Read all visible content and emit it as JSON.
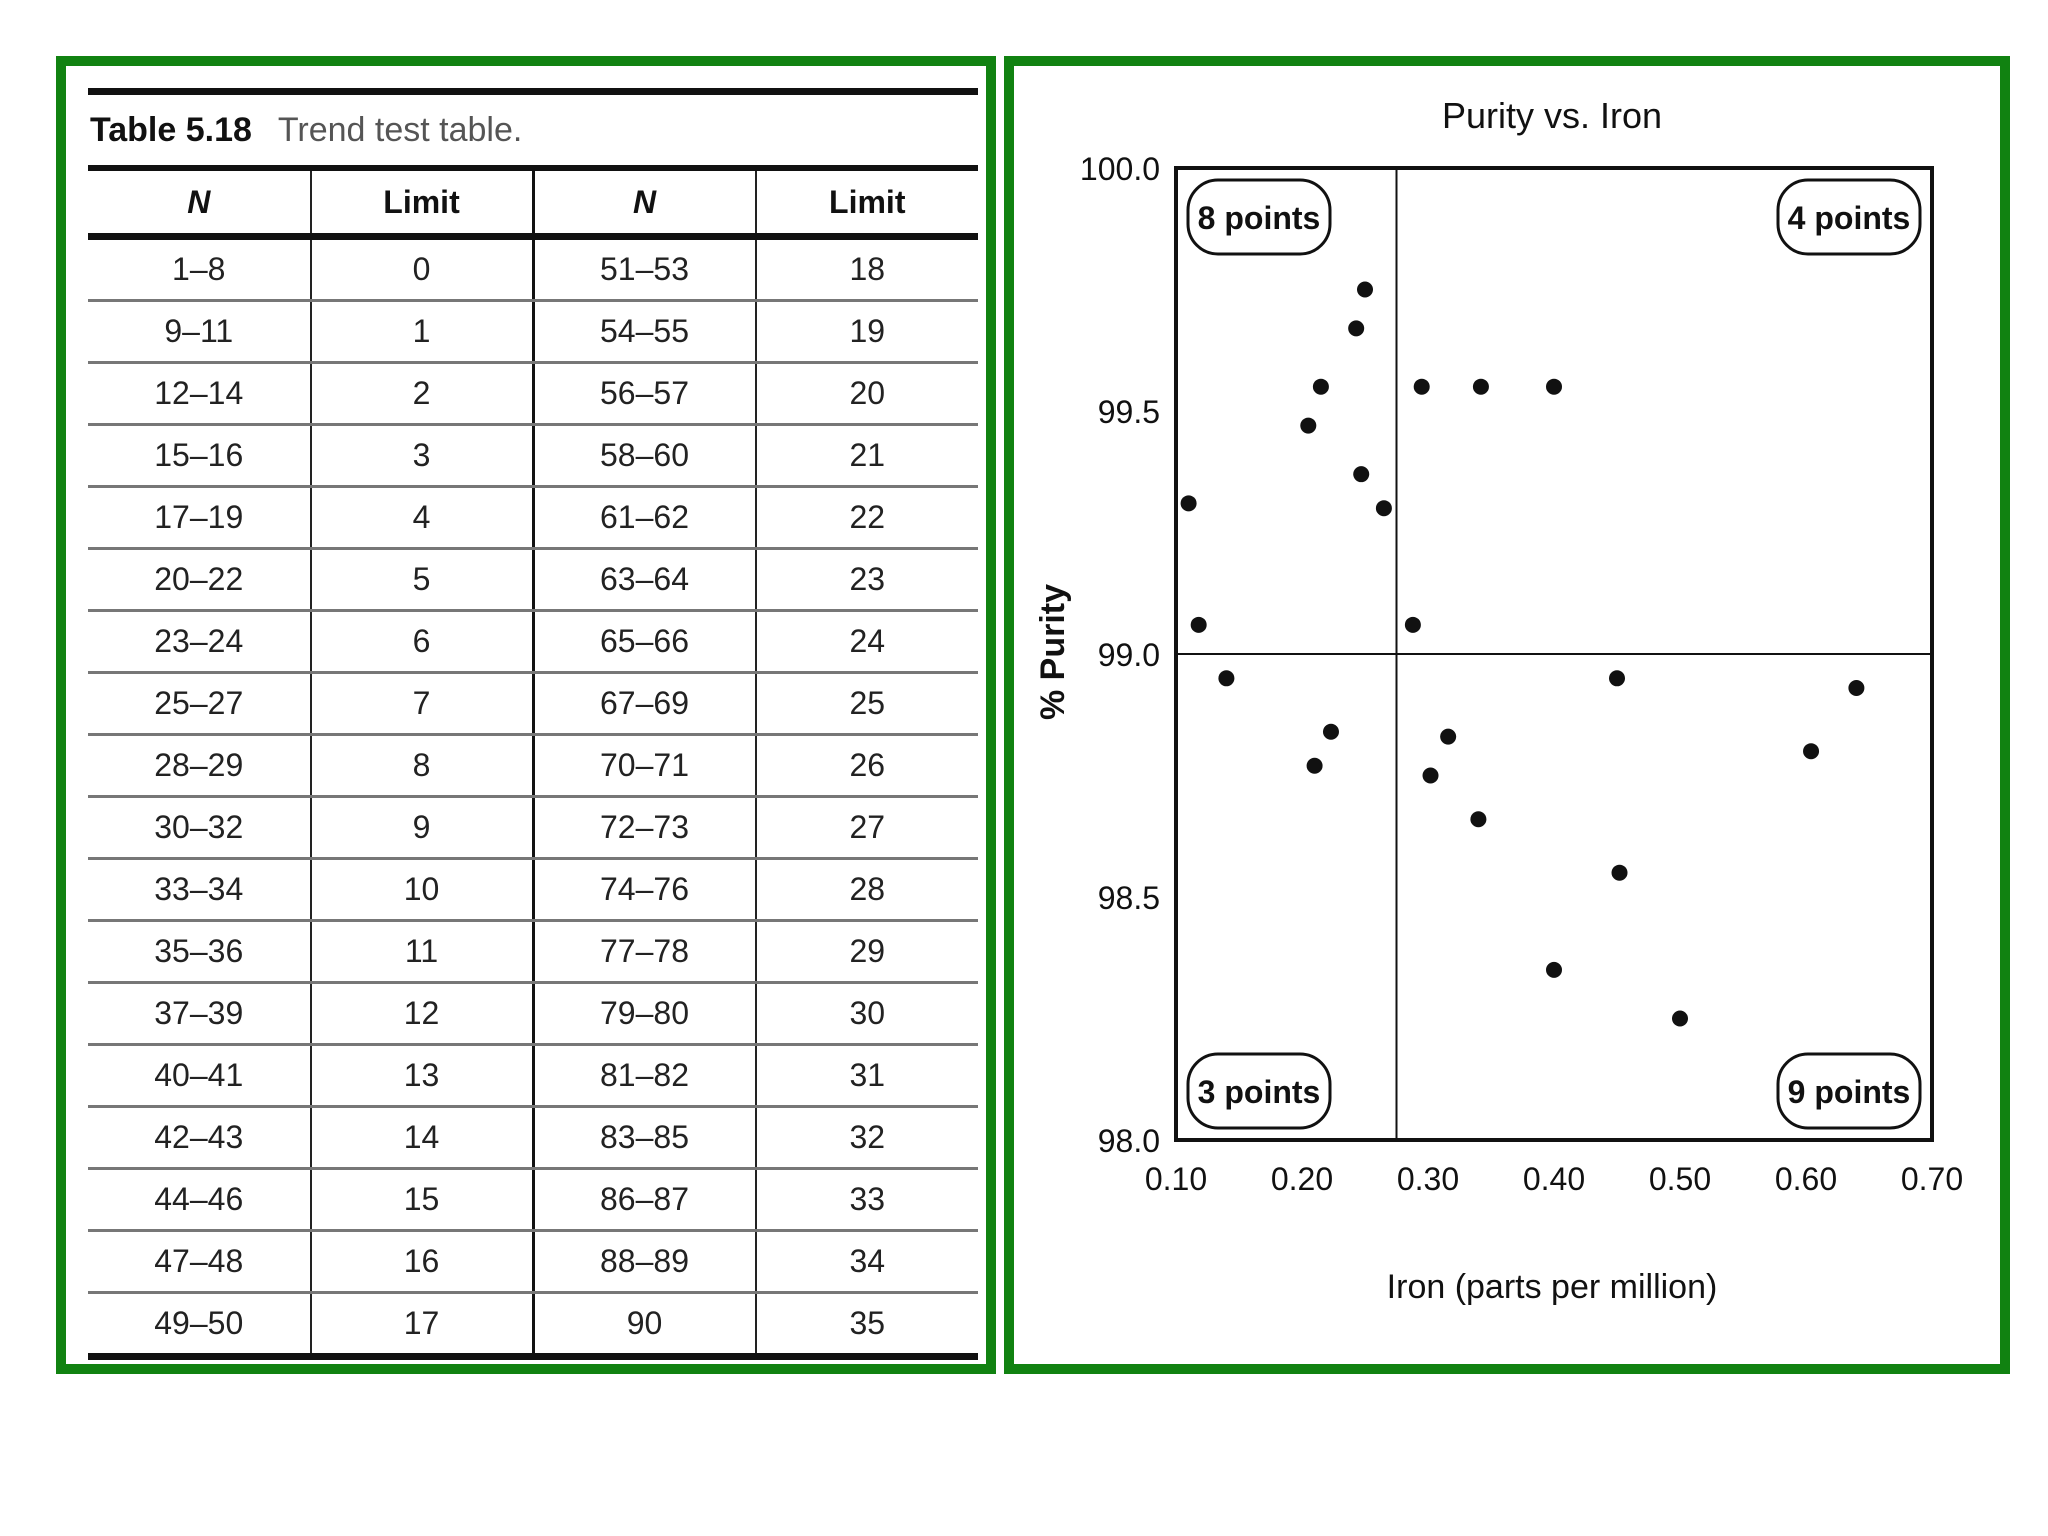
{
  "table": {
    "label": "Table 5.18",
    "caption": "Trend test table.",
    "headers": [
      "N",
      "Limit",
      "N",
      "Limit"
    ],
    "rows": [
      [
        "1–8",
        "0",
        "51–53",
        "18"
      ],
      [
        "9–11",
        "1",
        "54–55",
        "19"
      ],
      [
        "12–14",
        "2",
        "56–57",
        "20"
      ],
      [
        "15–16",
        "3",
        "58–60",
        "21"
      ],
      [
        "17–19",
        "4",
        "61–62",
        "22"
      ],
      [
        "20–22",
        "5",
        "63–64",
        "23"
      ],
      [
        "23–24",
        "6",
        "65–66",
        "24"
      ],
      [
        "25–27",
        "7",
        "67–69",
        "25"
      ],
      [
        "28–29",
        "8",
        "70–71",
        "26"
      ],
      [
        "30–32",
        "9",
        "72–73",
        "27"
      ],
      [
        "33–34",
        "10",
        "74–76",
        "28"
      ],
      [
        "35–36",
        "11",
        "77–78",
        "29"
      ],
      [
        "37–39",
        "12",
        "79–80",
        "30"
      ],
      [
        "40–41",
        "13",
        "81–82",
        "31"
      ],
      [
        "42–43",
        "14",
        "83–85",
        "32"
      ],
      [
        "44–46",
        "15",
        "86–87",
        "33"
      ],
      [
        "47–48",
        "16",
        "88–89",
        "34"
      ],
      [
        "49–50",
        "17",
        "90",
        "35"
      ]
    ]
  },
  "chart_data": {
    "type": "scatter",
    "title": "Purity vs. Iron",
    "xlabel": "Iron (parts per million)",
    "ylabel": "% Purity",
    "xlim": [
      0.1,
      0.7
    ],
    "ylim": [
      98.0,
      100.0
    ],
    "xticks": [
      "0.10",
      "0.20",
      "0.30",
      "0.40",
      "0.50",
      "0.60",
      "0.70"
    ],
    "yticks": [
      "98.0",
      "98.5",
      "99.0",
      "99.5",
      "100.0"
    ],
    "median_x": 0.275,
    "median_y": 99.0,
    "grid": false,
    "quadrant_labels": {
      "upper_left": "8 points",
      "upper_right": "4 points",
      "lower_left": "3 points",
      "lower_right": "9 points"
    },
    "points": [
      {
        "x": 0.11,
        "y": 99.31
      },
      {
        "x": 0.118,
        "y": 99.06
      },
      {
        "x": 0.14,
        "y": 98.95
      },
      {
        "x": 0.205,
        "y": 99.47
      },
      {
        "x": 0.215,
        "y": 99.55
      },
      {
        "x": 0.243,
        "y": 99.67
      },
      {
        "x": 0.247,
        "y": 99.37
      },
      {
        "x": 0.25,
        "y": 99.75
      },
      {
        "x": 0.265,
        "y": 99.3
      },
      {
        "x": 0.21,
        "y": 98.77
      },
      {
        "x": 0.223,
        "y": 98.84
      },
      {
        "x": 0.288,
        "y": 99.06
      },
      {
        "x": 0.295,
        "y": 99.55
      },
      {
        "x": 0.342,
        "y": 99.55
      },
      {
        "x": 0.4,
        "y": 99.55
      },
      {
        "x": 0.302,
        "y": 98.75
      },
      {
        "x": 0.316,
        "y": 98.83
      },
      {
        "x": 0.34,
        "y": 98.66
      },
      {
        "x": 0.45,
        "y": 98.95
      },
      {
        "x": 0.452,
        "y": 98.55
      },
      {
        "x": 0.4,
        "y": 98.35
      },
      {
        "x": 0.5,
        "y": 98.25
      },
      {
        "x": 0.604,
        "y": 98.8
      },
      {
        "x": 0.64,
        "y": 98.93
      }
    ]
  }
}
